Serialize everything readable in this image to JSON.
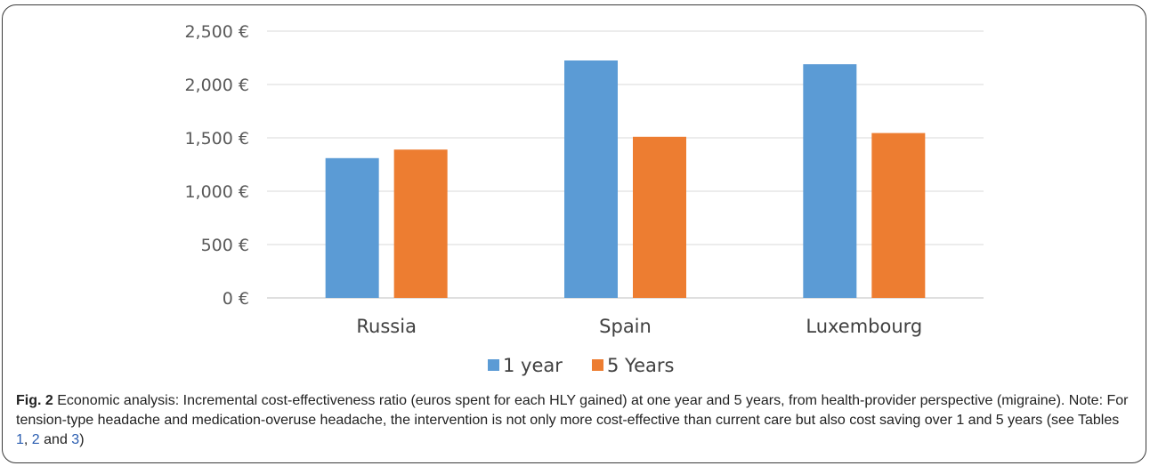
{
  "chart_data": {
    "type": "bar",
    "categories": [
      "Russia",
      "Spain",
      "Luxembourg"
    ],
    "series": [
      {
        "name": "1 year",
        "values": [
          1310,
          2225,
          2190
        ],
        "color": "#5b9bd5"
      },
      {
        "name": "5 Years",
        "values": [
          1390,
          1510,
          1545
        ],
        "color": "#ed7d31"
      }
    ],
    "ylim": [
      0,
      2500
    ],
    "yticks": [
      0,
      500,
      1000,
      1500,
      2000,
      2500
    ],
    "ytick_labels": [
      "0 €",
      "500 €",
      "1,000 €",
      "1,500 €",
      "2,000 €",
      "2,500 €"
    ],
    "grid": true,
    "legend_position": "bottom-center",
    "xlabel": "",
    "ylabel": ""
  },
  "caption": {
    "lead": "Fig. 2",
    "text_1": " Economic analysis: Incremental cost-effectiveness ratio (euros spent for each HLY gained) at one year and 5 years, from health-provider perspective (migraine). Note: For tension-type headache and medication-overuse headache, the intervention is not only more cost-effective than current care but also cost saving over 1 and 5 years (see Tables ",
    "ref_1": "1",
    "sep_1": ", ",
    "ref_2": "2",
    "sep_2": " and ",
    "ref_3": "3",
    "text_2": ")"
  }
}
